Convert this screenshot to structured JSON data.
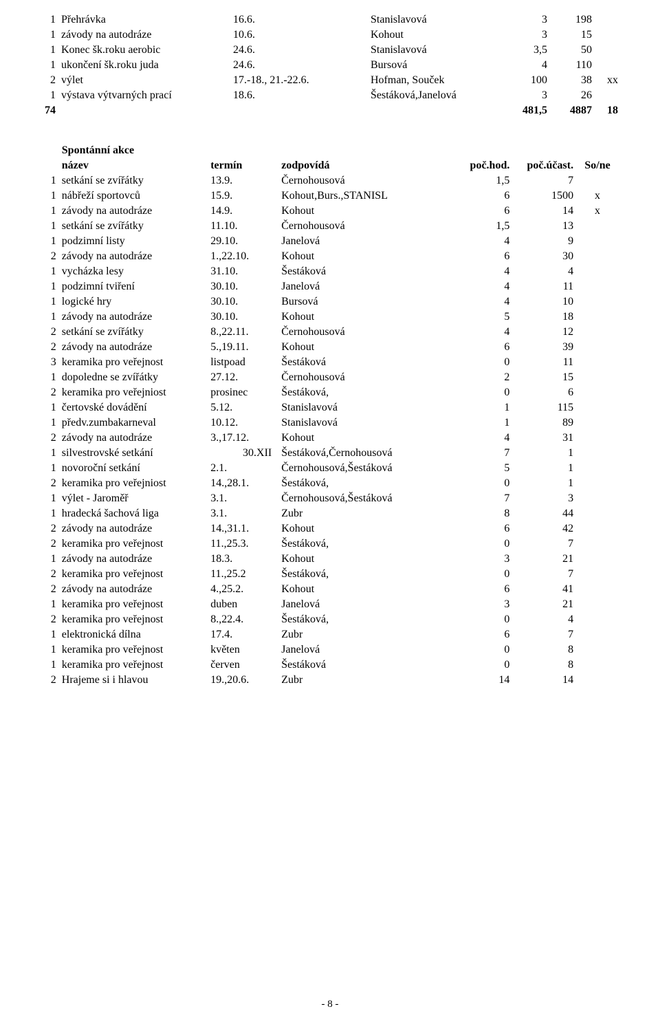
{
  "top_table": {
    "rows": [
      {
        "n": "1",
        "name": "Přehrávka",
        "date": "16.6.",
        "resp": "Stanislavová",
        "c4": "3",
        "c5": "198",
        "c6": ""
      },
      {
        "n": "1",
        "name": "závody na autodráze",
        "date": "10.6.",
        "resp": "Kohout",
        "c4": "3",
        "c5": "15",
        "c6": ""
      },
      {
        "n": "1",
        "name": "Konec šk.roku aerobic",
        "date": "24.6.",
        "resp": "Stanislavová",
        "c4": "3,5",
        "c5": "50",
        "c6": ""
      },
      {
        "n": "1",
        "name": "ukončení šk.roku juda",
        "date": "24.6.",
        "resp": "Bursová",
        "c4": "4",
        "c5": "110",
        "c6": ""
      },
      {
        "n": "2",
        "name": "výlet",
        "date": "17.-18., 21.-22.6.",
        "resp": "Hofman, Souček",
        "c4": "100",
        "c5": "38",
        "c6": "xx"
      },
      {
        "n": "1",
        "name": "výstava výtvarných prací",
        "date": "18.6.",
        "resp": "Šestáková,Janelová",
        "c4": "3",
        "c5": "26",
        "c6": ""
      }
    ],
    "total": {
      "n": "74",
      "c4": "481,5",
      "c5": "4887",
      "c6": "18"
    }
  },
  "section": {
    "title": "Spontánní akce",
    "headers": {
      "name": "název",
      "date": "termín",
      "resp": "zodpovídá",
      "c4": "poč.hod.",
      "c5": "poč.účast.",
      "c6": "So/ne"
    }
  },
  "bottom_table": {
    "rows": [
      {
        "n": "1",
        "name": "setkání se zvířátky",
        "date": "13.9.",
        "resp": "Černohousová",
        "c4": "1,5",
        "c5": "7",
        "c6": ""
      },
      {
        "n": "1",
        "name": "nábřeží sportovců",
        "date": "15.9.",
        "resp": "Kohout,Burs.,STANISL",
        "c4": "6",
        "c5": "1500",
        "c6": "x"
      },
      {
        "n": "1",
        "name": "závody na autodráze",
        "date": "14.9.",
        "resp": "Kohout",
        "c4": "6",
        "c5": "14",
        "c6": "x"
      },
      {
        "n": "1",
        "name": "setkání se zvířátky",
        "date": "11.10.",
        "resp": "Černohousová",
        "c4": "1,5",
        "c5": "13",
        "c6": ""
      },
      {
        "n": "1",
        "name": "podzimní listy",
        "date": "29.10.",
        "resp": "Janelová",
        "c4": "4",
        "c5": "9",
        "c6": ""
      },
      {
        "n": "2",
        "name": "závody na autodráze",
        "date": "1.,22.10.",
        "resp": "Kohout",
        "c4": "6",
        "c5": "30",
        "c6": ""
      },
      {
        "n": "1",
        "name": "vycházka lesy",
        "date": "31.10.",
        "resp": "Šestáková",
        "c4": "4",
        "c5": "4",
        "c6": ""
      },
      {
        "n": "1",
        "name": "podzimní tviření",
        "date": "30.10.",
        "resp": "Janelová",
        "c4": "4",
        "c5": "11",
        "c6": ""
      },
      {
        "n": "1",
        "name": "logické hry",
        "date": "30.10.",
        "resp": "Bursová",
        "c4": "4",
        "c5": "10",
        "c6": ""
      },
      {
        "n": "1",
        "name": "závody na autodráze",
        "date": "30.10.",
        "resp": "Kohout",
        "c4": "5",
        "c5": "18",
        "c6": ""
      },
      {
        "n": "2",
        "name": "setkání se zvířátky",
        "date": "8.,22.11.",
        "resp": "Černohousová",
        "c4": "4",
        "c5": "12",
        "c6": ""
      },
      {
        "n": "2",
        "name": "závody na autodráze",
        "date": "5.,19.11.",
        "resp": "Kohout",
        "c4": "6",
        "c5": "39",
        "c6": ""
      },
      {
        "n": "3",
        "name": "keramika pro veřejnost",
        "date": "listpoad",
        "resp": "Šestáková",
        "c4": "0",
        "c5": "11",
        "c6": ""
      },
      {
        "n": "1",
        "name": "dopoledne se zvířátky",
        "date": "27.12.",
        "resp": "Černohousová",
        "c4": "2",
        "c5": "15",
        "c6": ""
      },
      {
        "n": "2",
        "name": "keramika pro veřejniost",
        "date": "prosinec",
        "resp": "Šestáková,",
        "c4": "0",
        "c5": "6",
        "c6": ""
      },
      {
        "n": "1",
        "name": "čertovské dovádění",
        "date": "5.12.",
        "resp": "Stanislavová",
        "c4": "1",
        "c5": "115",
        "c6": ""
      },
      {
        "n": "1",
        "name": "předv.zumbakarneval",
        "date": "10.12.",
        "resp": "Stanislavová",
        "c4": "1",
        "c5": "89",
        "c6": ""
      },
      {
        "n": "2",
        "name": "závody na autodráze",
        "date": "3.,17.12.",
        "resp": "Kohout",
        "c4": "4",
        "c5": "31",
        "c6": ""
      },
      {
        "n": "1",
        "name": "silvestrovské setkání",
        "date": "30.XII",
        "resp": "Šestáková,Černohousová",
        "c4": "7",
        "c5": "1",
        "c6": "",
        "date_align": "right"
      },
      {
        "n": "1",
        "name": "novoroční setkání",
        "date": "2.1.",
        "resp": "Černohousová,Šestáková",
        "c4": "5",
        "c5": "1",
        "c6": ""
      },
      {
        "n": "2",
        "name": "keramika pro veřejniost",
        "date": "14.,28.1.",
        "resp": "Šestáková,",
        "c4": "0",
        "c5": "1",
        "c6": ""
      },
      {
        "n": "1",
        "name": "výlet - Jaroměř",
        "date": "3.1.",
        "resp": "Černohousová,Šestáková",
        "c4": "7",
        "c5": "3",
        "c6": ""
      },
      {
        "n": "1",
        "name": "hradecká šachová liga",
        "date": "3.1.",
        "resp": "Zubr",
        "c4": "8",
        "c5": "44",
        "c6": ""
      },
      {
        "n": "2",
        "name": "závody na autodráze",
        "date": "14.,31.1.",
        "resp": "Kohout",
        "c4": "6",
        "c5": "42",
        "c6": ""
      },
      {
        "n": "2",
        "name": "keramika pro veřejnost",
        "date": "11.,25.3.",
        "resp": "Šestáková,",
        "c4": "0",
        "c5": "7",
        "c6": ""
      },
      {
        "n": "1",
        "name": "závody na autodráze",
        "date": "18.3.",
        "resp": "Kohout",
        "c4": "3",
        "c5": "21",
        "c6": ""
      },
      {
        "n": "2",
        "name": "keramika pro veřejnost",
        "date": "11.,25.2",
        "resp": "Šestáková,",
        "c4": "0",
        "c5": "7",
        "c6": ""
      },
      {
        "n": "2",
        "name": "závody na autodráze",
        "date": "4.,25.2.",
        "resp": "Kohout",
        "c4": "6",
        "c5": "41",
        "c6": ""
      },
      {
        "n": "1",
        "name": "keramika pro veřejnost",
        "date": "duben",
        "resp": "Janelová",
        "c4": "3",
        "c5": "21",
        "c6": ""
      },
      {
        "n": "2",
        "name": "keramika pro veřejnost",
        "date": "8.,22.4.",
        "resp": "Šestáková,",
        "c4": "0",
        "c5": "4",
        "c6": ""
      },
      {
        "n": "1",
        "name": "elektronická dílna",
        "date": "17.4.",
        "resp": "Zubr",
        "c4": "6",
        "c5": "7",
        "c6": ""
      },
      {
        "n": "1",
        "name": "keramika pro veřejnost",
        "date": "květen",
        "resp": "Janelová",
        "c4": "0",
        "c5": "8",
        "c6": ""
      },
      {
        "n": "1",
        "name": "keramika pro veřejnost",
        "date": "červen",
        "resp": "Šestáková",
        "c4": "0",
        "c5": "8",
        "c6": ""
      },
      {
        "n": "2",
        "name": "Hrajeme si i hlavou",
        "date": "19.,20.6.",
        "resp": "Zubr",
        "c4": "14",
        "c5": "14",
        "c6": ""
      }
    ]
  },
  "footer": "- 8 -"
}
